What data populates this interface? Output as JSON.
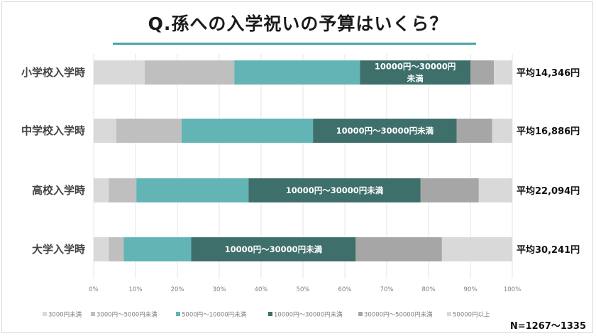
{
  "title": "Q.孫への入学祝いの予算はいくら？",
  "sample_note": "N=1267～1335",
  "colors": {
    "accent_underline": "#4aa6a8",
    "segments": [
      "#d9d9d9",
      "#bfbfbf",
      "#63b4b4",
      "#3e6f6b",
      "#a6a6a6",
      "#d9d9d9"
    ]
  },
  "chart_data": {
    "type": "bar",
    "orientation": "horizontal",
    "stacked": true,
    "percent_stacked": true,
    "categories": [
      "小学校入学時",
      "中学校入学時",
      "高校入学時",
      "大学入学時"
    ],
    "averages": [
      "平均14,346円",
      "平均16,886円",
      "平均22,094円",
      "平均30,241円"
    ],
    "series": [
      {
        "name": "3000円未満",
        "values": [
          12.2,
          5.4,
          3.6,
          3.6
        ]
      },
      {
        "name": "3000円～5000円未満",
        "values": [
          21.4,
          15.6,
          6.6,
          3.6
        ]
      },
      {
        "name": "5000円～10000円未満",
        "values": [
          30.0,
          31.4,
          26.8,
          16.1
        ]
      },
      {
        "name": "10000円～30000円未満",
        "values": [
          26.4,
          34.3,
          41.1,
          39.3
        ]
      },
      {
        "name": "30000円～50000円未満",
        "values": [
          5.6,
          8.5,
          13.9,
          20.6
        ]
      },
      {
        "name": "50000円以上",
        "values": [
          4.4,
          4.8,
          8.0,
          16.8
        ]
      }
    ],
    "segment_labels": [
      {
        "row": 0,
        "series": 3,
        "lines": [
          "10000円～30000円",
          "未満"
        ]
      },
      {
        "row": 1,
        "series": 3,
        "lines": [
          "10000円～30000円未満"
        ]
      },
      {
        "row": 2,
        "series": 3,
        "lines": [
          "10000円～30000円未満"
        ]
      },
      {
        "row": 3,
        "series": 3,
        "lines": [
          "10000円～30000円未満"
        ]
      }
    ],
    "x_ticks": [
      "0%",
      "10%",
      "20%",
      "30%",
      "40%",
      "50%",
      "60%",
      "70%",
      "80%",
      "90%",
      "100%"
    ],
    "xlim": [
      0,
      100
    ],
    "grid": true,
    "legend_position": "bottom"
  }
}
